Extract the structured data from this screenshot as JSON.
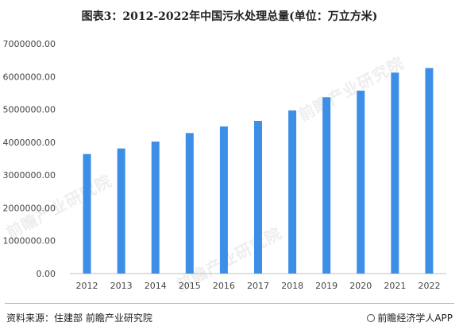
{
  "title": "图表3：2012-2022年中国污水处理总量(单位：万立方米)",
  "source_text": "资料来源：住建部 前瞻产业研究院",
  "brand_text": "前瞻经济学人APP",
  "watermark_text": "前瞻产业研究院",
  "colors": {
    "bar": "#3c8ee7",
    "axis": "#bfbfbf",
    "text": "#444444"
  },
  "chart_data": {
    "type": "bar",
    "categories": [
      "2012",
      "2013",
      "2014",
      "2015",
      "2016",
      "2017",
      "2018",
      "2019",
      "2020",
      "2021",
      "2022"
    ],
    "values": [
      3640000,
      3810000,
      4020000,
      4280000,
      4480000,
      4650000,
      4970000,
      5370000,
      5570000,
      6120000,
      6260000
    ],
    "ylim": [
      0,
      7000000
    ],
    "yticks": [
      0,
      1000000,
      2000000,
      3000000,
      4000000,
      5000000,
      6000000,
      7000000
    ],
    "ytick_labels": [
      "0.00",
      "1000000.00",
      "2000000.00",
      "3000000.00",
      "4000000.00",
      "5000000.00",
      "6000000.00",
      "7000000.00"
    ],
    "grid": false,
    "legend": "none"
  }
}
